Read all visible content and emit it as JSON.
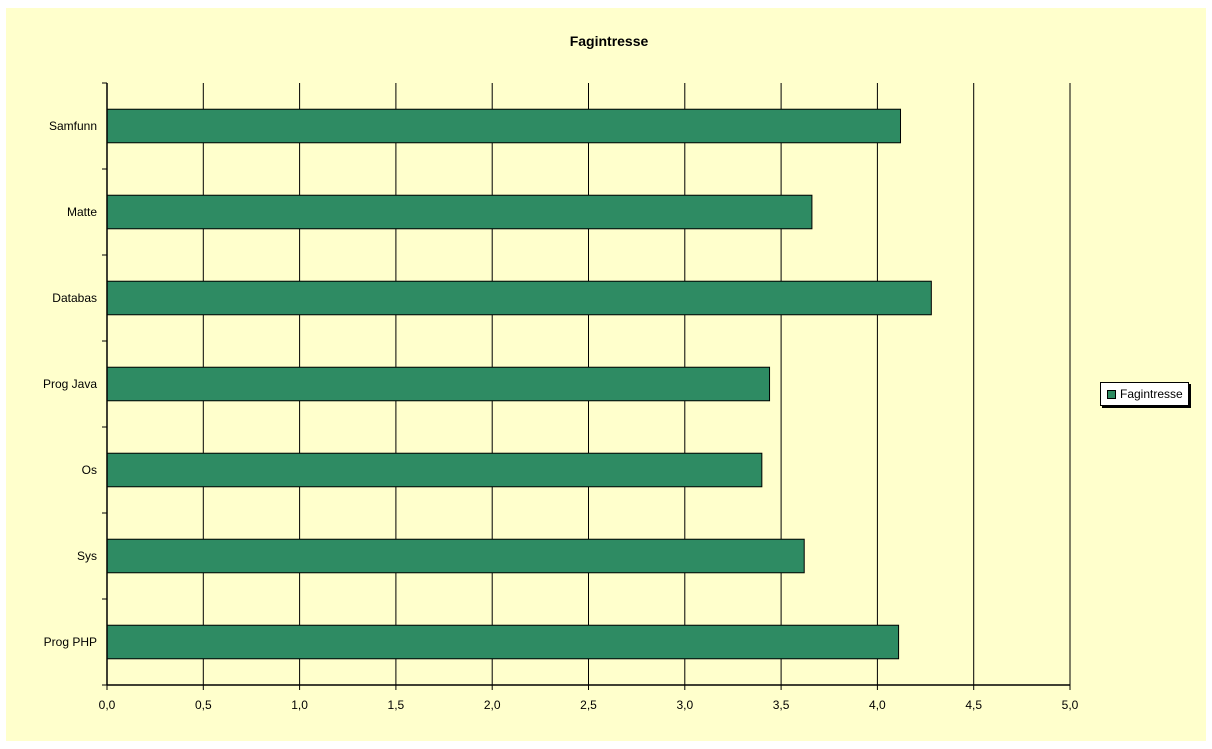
{
  "chart_data": {
    "type": "bar",
    "orientation": "horizontal",
    "title": "Fagintresse",
    "categories": [
      "Samfunn",
      "Matte",
      "Databas",
      "Prog Java",
      "Os",
      "Sys",
      "Prog PHP"
    ],
    "series": [
      {
        "name": "Fagintresse",
        "values": [
          4.12,
          3.66,
          4.28,
          3.44,
          3.4,
          3.62,
          4.11
        ]
      }
    ],
    "xlim": [
      0,
      5
    ],
    "xticks": [
      "0,0",
      "0,5",
      "1,0",
      "1,5",
      "2,0",
      "2,5",
      "3,0",
      "3,5",
      "4,0",
      "4,5",
      "5,0"
    ],
    "xlabel": "",
    "ylabel": "",
    "grid": "vertical",
    "legend_position": "right",
    "colors": {
      "bar": "#2e8b63",
      "plot_background": "#ffffcc",
      "grid": "#000000"
    }
  }
}
